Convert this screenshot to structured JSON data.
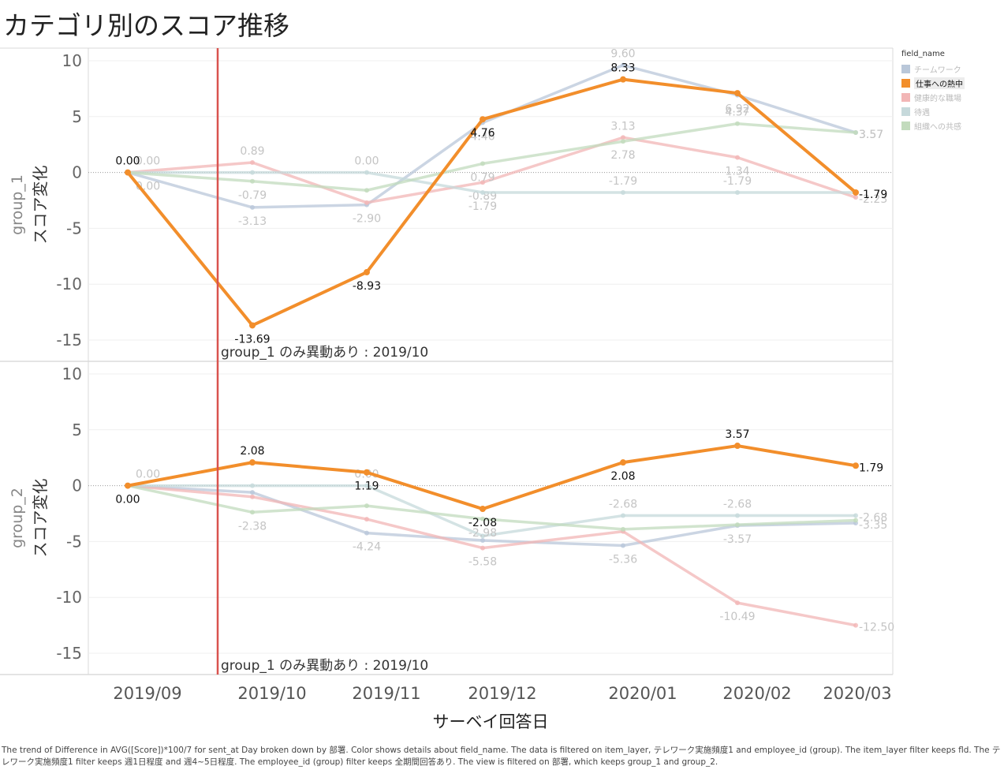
{
  "title": "カテゴリ別のスコア推移",
  "caption": "The trend of Difference in AVG([Score])*100/7 for sent_at Day broken down by 部署.  Color shows details about field_name. The data is filtered on item_layer, テレワーク実施頻度1 and employee_id (group). The item_layer filter keeps fld. The テレワーク実施頻度1 filter keeps 週1日程度 and 週4~5日程度. The employee_id (group) filter keeps 全期間回答あり. The view is filtered on 部署, which keeps group_1 and group_2.",
  "legend": {
    "title": "field_name",
    "selected": "仕事への熱中",
    "items": [
      {
        "label": "チームワーク",
        "color": "#b9c7d9"
      },
      {
        "label": "仕事への熱中",
        "color": "#f28e2b"
      },
      {
        "label": "健康的な職場",
        "color": "#f2b6b6"
      },
      {
        "label": "待遇",
        "color": "#c6d9db"
      },
      {
        "label": "組織への共感",
        "color": "#c2dbbd"
      }
    ]
  },
  "chart_data": {
    "type": "line",
    "x": [
      "2019/09",
      "2019/10",
      "2019/11",
      "2019/12",
      "2020/01",
      "2020/02",
      "2020/03"
    ],
    "xlabel": "サーベイ回答日",
    "ylim": [
      -17,
      11
    ],
    "yticks": [
      "10",
      "5",
      "0",
      "-5",
      "-10",
      "-15"
    ],
    "annotation": "group_1 のみ異動あり : 2019/10",
    "panels": [
      {
        "ylabel_group": "group_1",
        "ylabel": "スコア変化",
        "series": [
          {
            "name": "チームワーク",
            "values": [
              0,
              -3.13,
              -2.9,
              4.46,
              9.6,
              6.92,
              3.57
            ],
            "labels": [
              "",
              "-3.13",
              "-2.90",
              "4.46",
              "9.60",
              "6.92",
              "3.57"
            ]
          },
          {
            "name": "健康的な職場",
            "values": [
              0,
              0.89,
              -2.7,
              -0.89,
              3.13,
              1.34,
              -2.23
            ],
            "labels": [
              "0.00",
              "0.89",
              "",
              "-0.89",
              "3.13",
              "1.34",
              "-2.23"
            ]
          },
          {
            "name": "待遇",
            "values": [
              0,
              0,
              0,
              -1.79,
              -1.79,
              -1.79,
              -1.79
            ],
            "labels": [
              "",
              "",
              "0.00",
              "-1.79",
              "-1.79",
              "-1.79",
              ""
            ]
          },
          {
            "name": "組織への共感",
            "values": [
              0,
              -0.79,
              -1.6,
              0.79,
              2.78,
              4.37,
              3.57
            ],
            "labels": [
              "0.00",
              "-0.79",
              "",
              "0.79",
              "2.78",
              "4.37",
              "3.57"
            ]
          },
          {
            "name": "仕事への熱中",
            "values": [
              0,
              -13.69,
              -8.93,
              4.76,
              8.33,
              7.1,
              -1.79
            ],
            "labels": [
              "0.00",
              "-13.69",
              "-8.93",
              "4.76",
              "8.33",
              "",
              "-1.79"
            ]
          }
        ]
      },
      {
        "ylabel_group": "group_2",
        "ylabel": "スコア変化",
        "series": [
          {
            "name": "チームワーク",
            "values": [
              0,
              -0.6,
              -4.24,
              -4.9,
              -5.36,
              -3.57,
              -3.35
            ],
            "labels": [
              "",
              "",
              "-4.24",
              "",
              "-5.36",
              "-3.57",
              "-3.35"
            ]
          },
          {
            "name": "健康的な職場",
            "values": [
              0,
              -1.0,
              -3.0,
              -5.58,
              -4.1,
              -10.49,
              -12.5
            ],
            "labels": [
              "",
              "",
              "",
              "-5.58",
              "",
              "-10.49",
              "-12.50"
            ]
          },
          {
            "name": "待遇",
            "values": [
              0,
              0,
              0,
              -4.5,
              -2.68,
              -2.68,
              -2.68
            ],
            "labels": [
              "0.00",
              "",
              "0.00",
              "",
              "-2.68",
              "-2.68",
              "-2.68"
            ]
          },
          {
            "name": "組織への共感",
            "values": [
              0,
              -2.38,
              -1.8,
              -2.98,
              -3.9,
              -3.5,
              -3.1
            ],
            "labels": [
              "",
              "-2.38",
              "",
              "-2.98",
              "",
              "",
              ""
            ]
          },
          {
            "name": "仕事への熱中",
            "values": [
              0,
              2.08,
              1.19,
              -2.08,
              2.08,
              3.57,
              1.79
            ],
            "labels": [
              "0.00",
              "2.08",
              "1.19",
              "-2.08",
              "2.08",
              "3.57",
              "1.79"
            ]
          }
        ]
      }
    ]
  }
}
